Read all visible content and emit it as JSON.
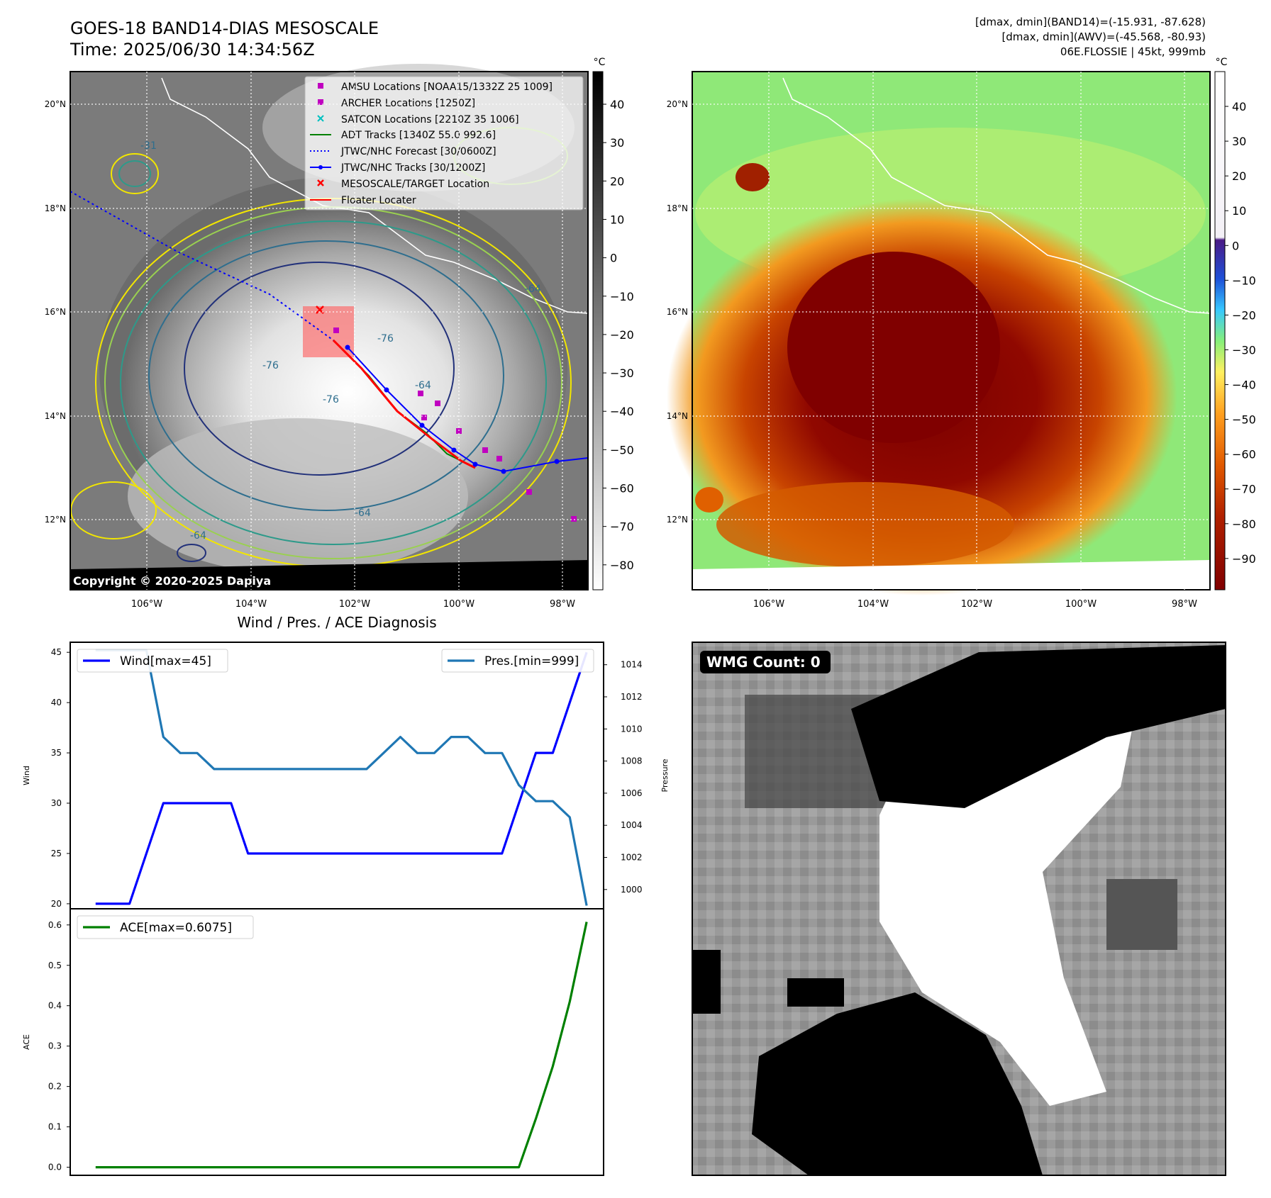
{
  "header": {
    "title": "GOES-18 BAND14-DIAS MESOSCALE",
    "time": "Time: 2025/06/30 14:34:56Z",
    "stats_band14": "[dmax, dmin](BAND14)=(-15.931, -87.628)",
    "stats_awv": "[dmax, dmin](AWV)=(-45.568, -80.93)",
    "storm": "06E.FLOSSIE | 45kt, 999mb"
  },
  "map_axes": {
    "lon_labels": [
      "106°W",
      "104°W",
      "102°W",
      "100°W",
      "98°W"
    ],
    "lat_labels": [
      "20°N",
      "18°N",
      "16°N",
      "14°N",
      "12°N"
    ],
    "colorbar_unit": "°C",
    "copyright": "Copyright © 2020-2025 Dapiya",
    "left_colorbar_ticks": [
      "40",
      "30",
      "20",
      "10",
      "0",
      "−10",
      "−20",
      "−30",
      "−40",
      "−50",
      "−60",
      "−70",
      "−80"
    ],
    "right_colorbar_ticks": [
      "40",
      "30",
      "20",
      "10",
      "0",
      "−10",
      "−20",
      "−30",
      "−40",
      "−50",
      "−60",
      "−70",
      "−80",
      "−90"
    ],
    "contour_labels": [
      "-31",
      "-64",
      "-76",
      "-64",
      "-76",
      "-64",
      "-64",
      "-76"
    ]
  },
  "legend": {
    "items": [
      {
        "label": "AMSU Locations [NOAA15/1332Z 25 1009]",
        "color": "#c000c0",
        "marker": "square"
      },
      {
        "label": "ARCHER Locations [1250Z]",
        "color": "#c000c0",
        "marker": "square"
      },
      {
        "label": "SATCON Locations [2210Z 35 1006]",
        "color": "#00c0c0",
        "marker": "x"
      },
      {
        "label": "ADT Tracks [1340Z 55.0 992.6]",
        "color": "#008000",
        "marker": "line"
      },
      {
        "label": "JTWC/NHC Forecast [30/0600Z]",
        "color": "#0000ff",
        "marker": "dotted"
      },
      {
        "label": "JTWC/NHC Tracks [30/1200Z]",
        "color": "#0000ff",
        "marker": "line-dot"
      },
      {
        "label": "MESOSCALE/TARGET Location",
        "color": "#ff0000",
        "marker": "x"
      },
      {
        "label": "Floater Locater",
        "color": "#ff0000",
        "marker": "line"
      }
    ]
  },
  "wmg": {
    "label": "WMG Count: 0"
  },
  "chart_data": [
    {
      "type": "line",
      "title": "Wind / Pres. / ACE Diagnosis",
      "ylabel": "Wind",
      "ylabel_right": "Pressure",
      "ylim": [
        19.5,
        46
      ],
      "ylim_right": [
        998.8,
        1015.4
      ],
      "yticks": [
        20,
        25,
        30,
        35,
        40,
        45
      ],
      "yticks_right": [
        1000,
        1002,
        1004,
        1006,
        1008,
        1010,
        1012,
        1014
      ],
      "x": [
        0,
        1,
        2,
        3,
        4,
        5,
        6,
        7,
        8,
        9,
        10,
        11,
        12,
        13,
        14,
        15,
        16,
        17,
        18,
        19,
        20,
        21,
        22,
        23,
        24,
        25,
        26,
        27,
        28,
        29
      ],
      "series": [
        {
          "name": "Wind[max=45]",
          "color": "#0000ff",
          "axis": "left",
          "values": [
            20,
            20,
            20,
            25,
            30,
            30,
            30,
            30,
            30,
            25,
            25,
            25,
            25,
            25,
            25,
            25,
            25,
            25,
            25,
            25,
            25,
            25,
            25,
            25,
            25,
            30,
            35,
            35,
            40,
            45
          ]
        },
        {
          "name": "Pres.[min=999]",
          "color": "#1f77b4",
          "axis": "right",
          "values": [
            1014.9,
            1014.9,
            1014.9,
            1014.9,
            1009.5,
            1008.5,
            1008.5,
            1007.5,
            1007.5,
            1007.5,
            1007.5,
            1007.5,
            1007.5,
            1007.5,
            1007.5,
            1007.5,
            1007.5,
            1008.5,
            1009.5,
            1008.5,
            1008.5,
            1009.5,
            1009.5,
            1008.5,
            1008.5,
            1006.5,
            1005.5,
            1005.5,
            1004.5,
            999.0
          ]
        }
      ]
    },
    {
      "type": "line",
      "ylabel": "ACE",
      "ylim": [
        -0.02,
        0.64
      ],
      "yticks": [
        0.0,
        0.1,
        0.2,
        0.3,
        0.4,
        0.5,
        0.6
      ],
      "x": [
        0,
        1,
        2,
        3,
        4,
        5,
        6,
        7,
        8,
        9,
        10,
        11,
        12,
        13,
        14,
        15,
        16,
        17,
        18,
        19,
        20,
        21,
        22,
        23,
        24,
        25,
        26,
        27,
        28,
        29
      ],
      "series": [
        {
          "name": "ACE[max=0.6075]",
          "color": "#008000",
          "axis": "left",
          "values": [
            0,
            0,
            0,
            0,
            0,
            0,
            0,
            0,
            0,
            0,
            0,
            0,
            0,
            0,
            0,
            0,
            0,
            0,
            0,
            0,
            0,
            0,
            0,
            0,
            0,
            0,
            0.12,
            0.25,
            0.41,
            0.6075
          ]
        }
      ]
    }
  ]
}
